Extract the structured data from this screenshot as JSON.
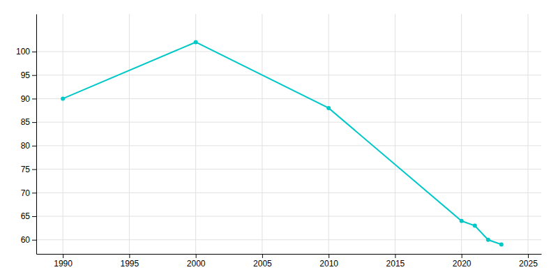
{
  "chart_data": {
    "type": "line",
    "x": [
      1990,
      2000,
      2010,
      2020,
      2021,
      2022,
      2023
    ],
    "values": [
      90,
      102,
      88,
      64,
      63,
      60,
      59
    ],
    "color": "#00c8c8",
    "marker": "circle",
    "xlim": [
      1988,
      2026
    ],
    "ylim": [
      57,
      108
    ],
    "xticks": [
      1990,
      1995,
      2000,
      2005,
      2010,
      2015,
      2020,
      2025
    ],
    "yticks": [
      60,
      65,
      70,
      75,
      80,
      85,
      90,
      95,
      100
    ],
    "grid": true
  }
}
